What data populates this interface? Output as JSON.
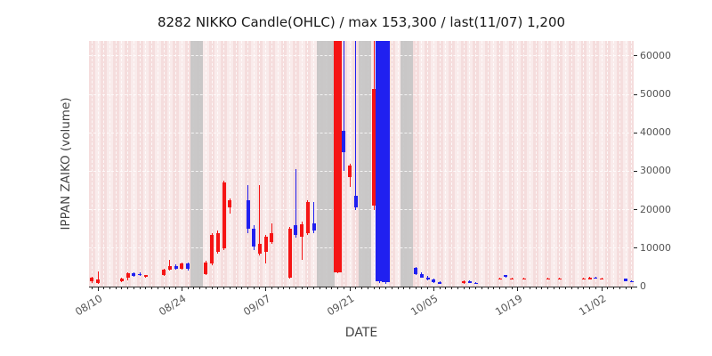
{
  "chart_data": {
    "type": "candlestick-ohlc",
    "title": "8282 NIKKO Candle(OHLC) / max 153,300 / last(11/07) 1,200",
    "xlabel": "DATE",
    "ylabel": "IPPAN ZAIKO (volume)",
    "ylim": [
      0,
      63900
    ],
    "yticks": [
      0,
      10000,
      20000,
      30000,
      40000,
      50000,
      60000
    ],
    "ytick_labels": [
      "0",
      "10000",
      "20000",
      "30000",
      "40000",
      "50000",
      "60000"
    ],
    "xticks": [
      "08/10",
      "08/24",
      "09/07",
      "09/21",
      "10/05",
      "10/19",
      "11/02"
    ],
    "grid": true,
    "legend": "none",
    "max_value": 153300,
    "last": {
      "date": "11/07",
      "value": 1200
    },
    "colors": {
      "up": "#f51414",
      "down": "#2020f0",
      "plot_bg": "#f9ebeb",
      "day_stripe": "rgba(221,130,130,0.13)",
      "closed_band": "rgba(196,196,196,0.9)",
      "gridline": "rgba(255,255,255,0.8)"
    },
    "closed_bands": [
      {
        "from": "08/26",
        "to": "08/27"
      },
      {
        "from": "09/16",
        "to": "09/18"
      },
      {
        "from": "09/23",
        "to": "09/24"
      },
      {
        "from": "09/30",
        "to": "10/01"
      }
    ],
    "candles": [
      {
        "date": "08/09",
        "open": 1400,
        "high": 2600,
        "low": 900,
        "close": 2300
      },
      {
        "date": "08/10",
        "open": 900,
        "high": 4000,
        "low": 600,
        "close": 1800
      },
      {
        "date": "08/14",
        "open": 1500,
        "high": 2200,
        "low": 1100,
        "close": 2000
      },
      {
        "date": "08/15",
        "open": 2200,
        "high": 3700,
        "low": 1600,
        "close": 3500
      },
      {
        "date": "08/16",
        "open": 3500,
        "high": 3800,
        "low": 2600,
        "close": 2800
      },
      {
        "date": "08/17",
        "open": 3300,
        "high": 3600,
        "low": 2700,
        "close": 2900
      },
      {
        "date": "08/18",
        "open": 2600,
        "high": 3100,
        "low": 2300,
        "close": 3000
      },
      {
        "date": "08/21",
        "open": 3000,
        "high": 4700,
        "low": 2800,
        "close": 4500
      },
      {
        "date": "08/22",
        "open": 4500,
        "high": 7000,
        "low": 4100,
        "close": 5300
      },
      {
        "date": "08/23",
        "open": 5300,
        "high": 5700,
        "low": 4300,
        "close": 4600
      },
      {
        "date": "08/24",
        "open": 4600,
        "high": 6300,
        "low": 4400,
        "close": 6000
      },
      {
        "date": "08/25",
        "open": 6000,
        "high": 6200,
        "low": 4200,
        "close": 4600
      },
      {
        "date": "08/28",
        "open": 3200,
        "high": 6600,
        "low": 2900,
        "close": 6300
      },
      {
        "date": "08/29",
        "open": 6000,
        "high": 13800,
        "low": 5600,
        "close": 13400
      },
      {
        "date": "08/30",
        "open": 9000,
        "high": 14500,
        "low": 8600,
        "close": 14000
      },
      {
        "date": "08/31",
        "open": 10000,
        "high": 27500,
        "low": 9600,
        "close": 27000
      },
      {
        "date": "09/01",
        "open": 20500,
        "high": 23000,
        "low": 19000,
        "close": 22500
      },
      {
        "date": "09/04",
        "open": 22500,
        "high": 26500,
        "low": 14000,
        "close": 15000
      },
      {
        "date": "09/05",
        "open": 15000,
        "high": 16000,
        "low": 9500,
        "close": 10500
      },
      {
        "date": "09/06",
        "open": 8600,
        "high": 26500,
        "low": 8000,
        "close": 11000
      },
      {
        "date": "09/07",
        "open": 9000,
        "high": 13500,
        "low": 6000,
        "close": 13000
      },
      {
        "date": "09/08",
        "open": 11500,
        "high": 16500,
        "low": 11000,
        "close": 14000
      },
      {
        "date": "09/11",
        "open": 2200,
        "high": 15500,
        "low": 2000,
        "close": 15000
      },
      {
        "date": "09/12",
        "open": 16000,
        "high": 30500,
        "low": 12800,
        "close": 13500
      },
      {
        "date": "09/13",
        "open": 13000,
        "high": 17000,
        "low": 7000,
        "close": 16200
      },
      {
        "date": "09/14",
        "open": 14000,
        "high": 22500,
        "low": 13500,
        "close": 22000
      },
      {
        "date": "09/15",
        "open": 16500,
        "high": 22000,
        "low": 13800,
        "close": 14500
      },
      {
        "date": "09/19",
        "open": 3800,
        "high": 153300,
        "low": 3500,
        "close": 150000,
        "wide": true
      },
      {
        "date": "09/20",
        "open": 40500,
        "high": 64000,
        "low": 30000,
        "close": 35000
      },
      {
        "date": "09/21",
        "open": 28500,
        "high": 32000,
        "low": 26000,
        "close": 31500
      },
      {
        "date": "09/22",
        "open": 23500,
        "high": 64000,
        "low": 20000,
        "close": 20500
      },
      {
        "date": "09/25",
        "open": 21000,
        "high": 65000,
        "low": 20000,
        "close": 51500
      },
      {
        "date": "09/26",
        "open": 70000,
        "high": 70000,
        "low": 1000,
        "close": 1500,
        "wide": true
      },
      {
        "date": "09/27",
        "open": 70000,
        "high": 70000,
        "low": 800,
        "close": 1200,
        "wide": true
      },
      {
        "date": "10/02",
        "open": 4800,
        "high": 5200,
        "low": 3000,
        "close": 3200
      },
      {
        "date": "10/03",
        "open": 3200,
        "high": 3600,
        "low": 2200,
        "close": 2400
      },
      {
        "date": "10/04",
        "open": 2400,
        "high": 2700,
        "low": 1600,
        "close": 1800
      },
      {
        "date": "10/05",
        "open": 1800,
        "high": 2000,
        "low": 1000,
        "close": 1200
      },
      {
        "date": "10/06",
        "open": 1200,
        "high": 1400,
        "low": 700,
        "close": 800
      },
      {
        "date": "10/10",
        "open": 900,
        "high": 1700,
        "low": 700,
        "close": 1500
      },
      {
        "date": "10/11",
        "open": 1500,
        "high": 1700,
        "low": 900,
        "close": 1000
      },
      {
        "date": "10/12",
        "open": 1000,
        "high": 1200,
        "low": 600,
        "close": 700
      },
      {
        "date": "10/16",
        "open": 2000,
        "high": 2200,
        "low": 1900,
        "close": 2100
      },
      {
        "date": "10/17",
        "open": 2900,
        "high": 3100,
        "low": 2400,
        "close": 2500
      },
      {
        "date": "10/18",
        "open": 2000,
        "high": 2200,
        "low": 1900,
        "close": 2100
      },
      {
        "date": "10/20",
        "open": 2000,
        "high": 2200,
        "low": 1900,
        "close": 2100
      },
      {
        "date": "10/24",
        "open": 2000,
        "high": 2200,
        "low": 1900,
        "close": 2100
      },
      {
        "date": "10/26",
        "open": 2000,
        "high": 2200,
        "low": 1900,
        "close": 2100
      },
      {
        "date": "10/30",
        "open": 2000,
        "high": 2200,
        "low": 1900,
        "close": 2100
      },
      {
        "date": "10/31",
        "open": 1900,
        "high": 2600,
        "low": 1800,
        "close": 2400
      },
      {
        "date": "11/01",
        "open": 2400,
        "high": 2500,
        "low": 2000,
        "close": 2100
      },
      {
        "date": "11/02",
        "open": 2000,
        "high": 2200,
        "low": 1900,
        "close": 2100
      },
      {
        "date": "11/06",
        "open": 2000,
        "high": 2100,
        "low": 1400,
        "close": 1500
      },
      {
        "date": "11/07",
        "open": 1500,
        "high": 1600,
        "low": 1100,
        "close": 1200
      }
    ]
  }
}
